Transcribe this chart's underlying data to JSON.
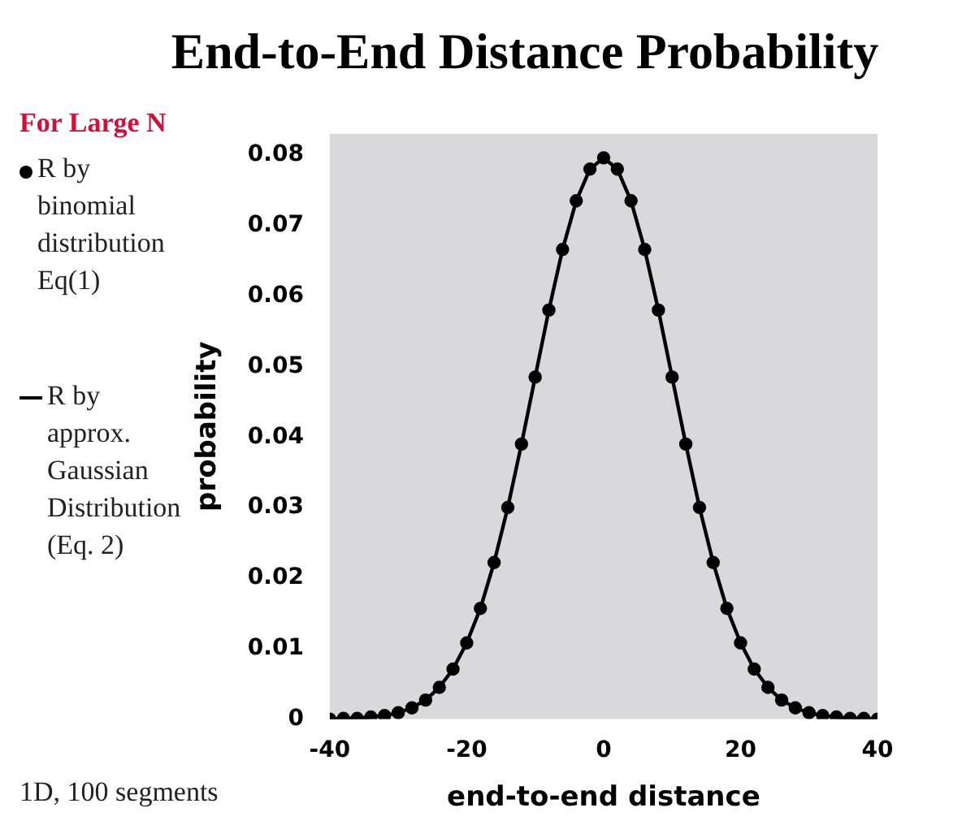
{
  "chart_data": {
    "type": "line",
    "title": "End-to-End Distance Probability",
    "subtitle": "For Large N",
    "xlabel": "end-to-end distance",
    "ylabel": "probability",
    "annotations": [
      "1D, 100 segments"
    ],
    "x": [
      -40,
      -38,
      -36,
      -34,
      -32,
      -30,
      -28,
      -26,
      -24,
      -22,
      -20,
      -18,
      -16,
      -14,
      -12,
      -10,
      -8,
      -6,
      -4,
      -2,
      0,
      2,
      4,
      6,
      8,
      10,
      12,
      14,
      16,
      18,
      20,
      22,
      24,
      26,
      28,
      30,
      32,
      34,
      36,
      38,
      40
    ],
    "series": [
      {
        "name": "R by binomial distribution Eq(1)",
        "type": "scatter",
        "marker": "circle",
        "color": "#000000",
        "values": [
          0,
          0.0001,
          0.0001,
          0.0003,
          0.0005,
          0.0009,
          0.0016,
          0.0027,
          0.0045,
          0.0071,
          0.0108,
          0.0157,
          0.0222,
          0.03,
          0.039,
          0.0485,
          0.058,
          0.0666,
          0.0735,
          0.078,
          0.0796,
          0.078,
          0.0735,
          0.0666,
          0.058,
          0.0485,
          0.039,
          0.03,
          0.0222,
          0.0157,
          0.0108,
          0.0071,
          0.0045,
          0.0027,
          0.0016,
          0.0009,
          0.0005,
          0.0003,
          0.0001,
          0.0001,
          0
        ]
      },
      {
        "name": "R by approx. Gaussian Distribution (Eq. 2)",
        "marker": "none",
        "line_style": "solid",
        "color": "#000000",
        "values": [
          0,
          0.0001,
          0.0001,
          0.0003,
          0.0005,
          0.0009,
          0.0016,
          0.0027,
          0.0045,
          0.0071,
          0.0108,
          0.0157,
          0.0222,
          0.03,
          0.039,
          0.0485,
          0.058,
          0.0666,
          0.0735,
          0.078,
          0.0796,
          0.078,
          0.0735,
          0.0666,
          0.058,
          0.0485,
          0.039,
          0.03,
          0.0222,
          0.0157,
          0.0108,
          0.0071,
          0.0045,
          0.0027,
          0.0016,
          0.0009,
          0.0005,
          0.0003,
          0.0001,
          0.0001,
          0
        ]
      }
    ],
    "xlim": [
      -40,
      40
    ],
    "xticks": [
      -40,
      -20,
      0,
      20,
      40
    ],
    "ylim": [
      0,
      0.083
    ],
    "yticks": [
      0,
      0.01,
      0.02,
      0.03,
      0.04,
      0.05,
      0.06,
      0.07,
      0.08
    ],
    "legend": "left"
  }
}
